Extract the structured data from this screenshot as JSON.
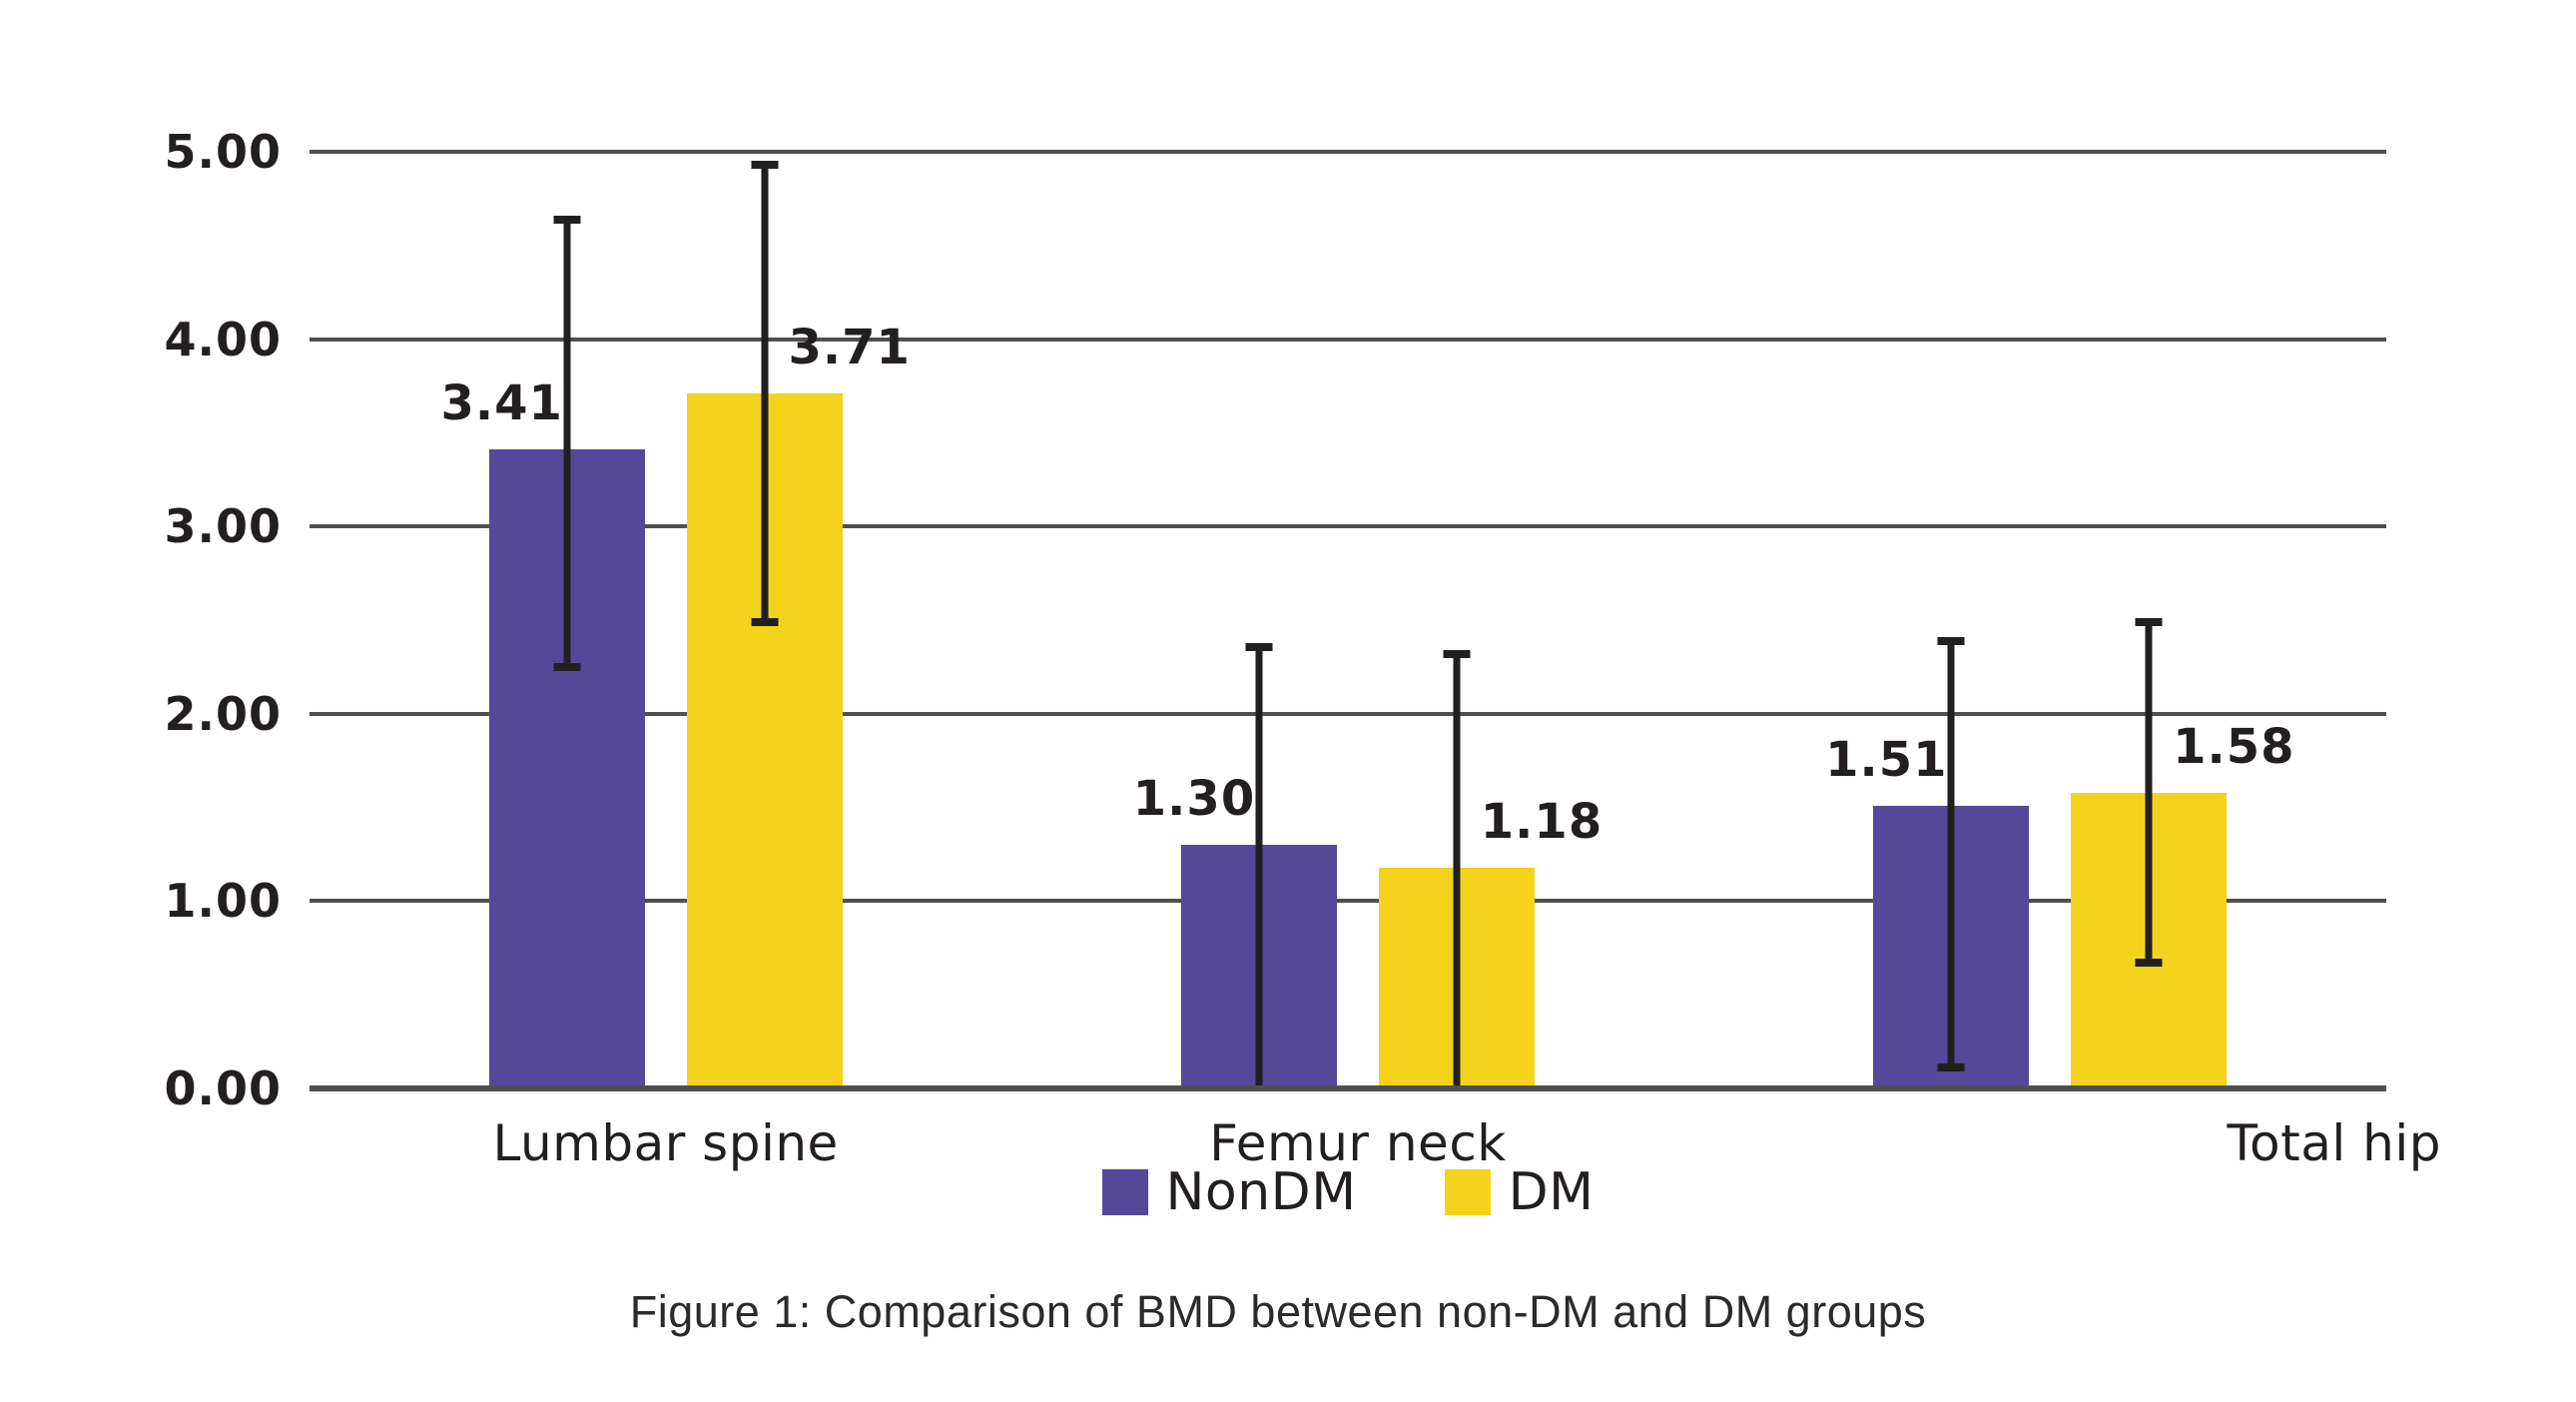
{
  "figure": {
    "caption": "Figure 1: Comparison of BMD between non-DM and DM groups"
  },
  "chart_data": {
    "type": "bar",
    "title": "",
    "xlabel": "",
    "ylabel": "",
    "categories": [
      "Lumbar spine",
      "Femur neck",
      "Total hip"
    ],
    "series": [
      {
        "name": "NonDM",
        "color": "#564899",
        "values": [
          3.41,
          1.3,
          1.51
        ],
        "err_low": [
          2.23,
          0.0,
          0.09
        ],
        "err_high": [
          4.66,
          2.38,
          2.41
        ],
        "cap_low": [
          true,
          false,
          true
        ]
      },
      {
        "name": "DM",
        "color": "#F5D21C",
        "values": [
          3.71,
          1.18,
          1.58
        ],
        "err_low": [
          2.47,
          0.0,
          0.65
        ],
        "err_high": [
          4.95,
          2.34,
          2.51
        ],
        "cap_low": [
          true,
          false,
          true
        ]
      }
    ],
    "value_labels": [
      [
        "3.41",
        "1.30",
        "1.51"
      ],
      [
        "3.71",
        "1.18",
        "1.58"
      ]
    ],
    "ylim": [
      0,
      5
    ],
    "ytick_step": 1,
    "ytick_labels": [
      "0.00",
      "1.00",
      "2.00",
      "3.00",
      "4.00",
      "5.00"
    ],
    "grid": "horizontal gridlines on",
    "legend_position": "bottom-center",
    "error_bar_style": "vertical whiskers with end caps; Femur neck lower whiskers run to the baseline without visible caps",
    "x_label_alignment": [
      "centered-under-group",
      "centered-under-group",
      "right-edge-of-plot"
    ]
  },
  "legend": {
    "items": [
      {
        "label": "NonDM",
        "color": "#564899"
      },
      {
        "label": "DM",
        "color": "#F5D21C"
      }
    ]
  },
  "colors": {
    "non_dm_purple": "#564899",
    "dm_yellow": "#F5D21C",
    "gridline_gray": "#4f4f51",
    "error_bar_black": "#221f1f",
    "text_black": "#231f20",
    "background": "#ffffff"
  }
}
